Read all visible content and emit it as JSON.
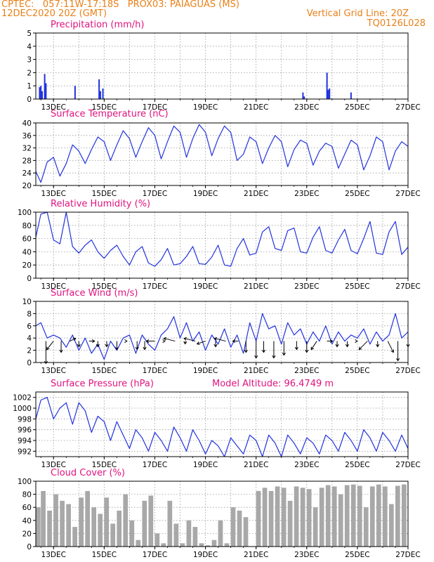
{
  "header": {
    "line1": "CPTEC:   057:11W-17:18S   PROX03: PAIAGUAS (MS)",
    "line2": "12DEC2020 20Z (GMT)",
    "grid_note": "Vertical Grid Line: 20Z",
    "code": "TQ0126L028",
    "model_altitude": "Model Altitude: 96.4749 m"
  },
  "colors": {
    "header": "#e8801a",
    "title": "#e0137f",
    "line": "#2233dd",
    "cloud": "#a8a8a8",
    "arrow": "#000000"
  },
  "x_axis": {
    "labels": [
      "13DEC",
      "15DEC",
      "17DEC",
      "19DEC",
      "21DEC",
      "23DEC",
      "25DEC",
      "27DEC"
    ],
    "label_days": [
      13,
      15,
      17,
      19,
      21,
      23,
      25,
      27
    ],
    "range": [
      12.3,
      27.0
    ],
    "vertical_grid_note": "daily at 20Z"
  },
  "chart_data": [
    {
      "type": "bar",
      "id": "precip",
      "title": "Precipitation (mm/h)",
      "ylim": [
        0,
        5
      ],
      "yticks": [
        "0",
        "1",
        "2",
        "3",
        "4",
        "5"
      ],
      "x": [
        12.45,
        12.5,
        12.55,
        12.65,
        12.7,
        13.85,
        14.8,
        14.85,
        14.95,
        22.85,
        22.9,
        23.8,
        23.85,
        23.9,
        24.75
      ],
      "values": [
        0.9,
        1.0,
        0.6,
        1.9,
        1.2,
        1.0,
        1.5,
        0.6,
        0.8,
        0.5,
        0.2,
        2.0,
        0.7,
        0.8,
        0.5
      ]
    },
    {
      "type": "line",
      "id": "temp",
      "title": "Surface Temperature (nC)",
      "ylim": [
        20,
        40
      ],
      "yticks": [
        "20",
        "24",
        "28",
        "32",
        "36",
        "40"
      ],
      "x": [
        12.3,
        12.5,
        12.75,
        13.0,
        13.25,
        13.5,
        13.75,
        14.0,
        14.25,
        14.5,
        14.75,
        15.0,
        15.25,
        15.5,
        15.75,
        16.0,
        16.25,
        16.5,
        16.75,
        17.0,
        17.25,
        17.5,
        17.75,
        18.0,
        18.25,
        18.5,
        18.75,
        19.0,
        19.25,
        19.5,
        19.75,
        20.0,
        20.25,
        20.5,
        20.75,
        21.0,
        21.25,
        21.5,
        21.75,
        22.0,
        22.25,
        22.5,
        22.75,
        23.0,
        23.25,
        23.5,
        23.75,
        24.0,
        24.25,
        24.5,
        24.75,
        25.0,
        25.25,
        25.5,
        25.75,
        26.0,
        26.25,
        26.5,
        26.75,
        27.0
      ],
      "values": [
        24.5,
        21.0,
        27.5,
        29.0,
        23.0,
        27.0,
        33.0,
        31.0,
        27.0,
        31.5,
        35.5,
        34.0,
        28.0,
        33.0,
        37.5,
        35.0,
        29.0,
        34.0,
        38.5,
        36.0,
        28.5,
        34.0,
        39.0,
        37.0,
        29.0,
        35.0,
        39.5,
        37.0,
        29.5,
        35.0,
        39.0,
        37.0,
        28.0,
        30.0,
        35.5,
        34.0,
        27.0,
        32.0,
        36.0,
        34.0,
        26.0,
        31.5,
        34.5,
        33.5,
        26.5,
        31.0,
        33.5,
        32.5,
        25.5,
        30.0,
        34.5,
        33.0,
        25.0,
        29.5,
        35.5,
        34.0,
        25.0,
        31.0,
        34.0,
        32.5
      ]
    },
    {
      "type": "line",
      "id": "rh",
      "title": "Relative Humidity (%)",
      "ylim": [
        0,
        100
      ],
      "yticks": [
        "0",
        "20",
        "40",
        "60",
        "80",
        "100"
      ],
      "x": [
        12.3,
        12.5,
        12.75,
        13.0,
        13.25,
        13.5,
        13.75,
        14.0,
        14.25,
        14.5,
        14.75,
        15.0,
        15.25,
        15.5,
        15.75,
        16.0,
        16.25,
        16.5,
        16.75,
        17.0,
        17.25,
        17.5,
        17.75,
        18.0,
        18.25,
        18.5,
        18.75,
        19.0,
        19.25,
        19.5,
        19.75,
        20.0,
        20.25,
        20.5,
        20.75,
        21.0,
        21.25,
        21.5,
        21.75,
        22.0,
        22.25,
        22.5,
        22.75,
        23.0,
        23.25,
        23.5,
        23.75,
        24.0,
        24.25,
        24.5,
        24.75,
        25.0,
        25.25,
        25.5,
        25.75,
        26.0,
        26.25,
        26.5,
        26.75,
        27.0
      ],
      "values": [
        62,
        97,
        100,
        58,
        52,
        100,
        48,
        38,
        50,
        58,
        40,
        30,
        42,
        50,
        33,
        20,
        40,
        48,
        23,
        18,
        28,
        45,
        20,
        22,
        33,
        48,
        22,
        21,
        32,
        50,
        20,
        18,
        45,
        60,
        35,
        38,
        70,
        78,
        45,
        42,
        72,
        76,
        40,
        38,
        62,
        78,
        42,
        38,
        58,
        74,
        42,
        37,
        60,
        86,
        38,
        36,
        70,
        86,
        36,
        47
      ]
    },
    {
      "type": "line",
      "id": "wind",
      "title": "Surface Wind (m/s)",
      "ylim": [
        0,
        10
      ],
      "yticks": [
        "0",
        "2",
        "4",
        "6",
        "8",
        "10"
      ],
      "x": [
        12.3,
        12.5,
        12.75,
        13.0,
        13.25,
        13.5,
        13.75,
        14.0,
        14.25,
        14.5,
        14.75,
        15.0,
        15.25,
        15.5,
        15.75,
        16.0,
        16.25,
        16.5,
        16.75,
        17.0,
        17.25,
        17.5,
        17.75,
        18.0,
        18.25,
        18.5,
        18.75,
        19.0,
        19.25,
        19.5,
        19.75,
        20.0,
        20.25,
        20.5,
        20.75,
        21.0,
        21.25,
        21.5,
        21.75,
        22.0,
        22.25,
        22.5,
        22.75,
        23.0,
        23.25,
        23.5,
        23.75,
        24.0,
        24.25,
        24.5,
        24.75,
        25.0,
        25.25,
        25.5,
        25.75,
        26.0,
        26.25,
        26.5,
        26.75,
        27.0
      ],
      "values": [
        6.0,
        6.5,
        4.0,
        4.5,
        4.0,
        2.5,
        4.5,
        2.0,
        4.0,
        1.5,
        3.0,
        0.5,
        3.5,
        2.0,
        4.0,
        4.5,
        1.5,
        4.5,
        3.0,
        2.0,
        4.5,
        5.5,
        7.5,
        4.0,
        6.5,
        3.5,
        5.0,
        2.0,
        4.5,
        3.0,
        5.5,
        2.5,
        4.5,
        1.5,
        6.5,
        3.5,
        8.0,
        5.5,
        6.0,
        3.0,
        6.5,
        4.5,
        5.5,
        3.0,
        5.0,
        3.5,
        6.0,
        3.0,
        5.0,
        3.5,
        4.5,
        4.0,
        5.5,
        3.0,
        5.0,
        3.5,
        4.5,
        8.0,
        4.0,
        5.0
      ],
      "vectors_x": [
        12.7,
        13.0,
        13.3,
        13.65,
        14.0,
        14.4,
        14.75,
        15.1,
        15.5,
        15.9,
        16.3,
        16.6,
        17.0,
        17.4,
        17.8,
        18.2,
        18.6,
        19.0,
        19.4,
        19.8,
        20.3,
        20.6,
        21.0,
        21.3,
        21.7,
        22.1,
        22.6,
        23.0,
        23.4,
        23.8,
        24.2,
        24.6,
        25.0,
        25.4,
        25.8,
        26.2,
        26.6,
        27.0
      ],
      "vectors_u": [
        0,
        -1.2,
        0,
        1.0,
        0,
        1.0,
        0,
        0,
        0,
        0,
        0,
        0,
        -1.5,
        0,
        -2.0,
        0,
        -2.0,
        -1.5,
        0,
        -2.0,
        -1.0,
        0,
        0,
        0,
        0,
        0,
        0,
        0,
        -1.0,
        1.0,
        0,
        0,
        0,
        -1.5,
        0,
        1.0,
        0,
        0
      ],
      "vectors_v": [
        -4.0,
        -1.5,
        -2.0,
        0.5,
        -1.0,
        0,
        -1.0,
        -1.0,
        -1.5,
        0,
        -1.5,
        -1.5,
        0,
        0,
        0.5,
        -0.5,
        0.5,
        -0.5,
        -1.0,
        0.5,
        0,
        -2.0,
        -3.0,
        -2.0,
        -3.0,
        -2.5,
        -1.5,
        -2.0,
        -1.5,
        0,
        -1.0,
        -1.0,
        0,
        -1.5,
        -1.0,
        -2.0,
        -3.5,
        -1.0
      ]
    },
    {
      "type": "line",
      "id": "pres",
      "title": "Surface Pressure (hPa)",
      "ylim": [
        991,
        1003
      ],
      "yticks": [
        "992",
        "994",
        "996",
        "998",
        "1000",
        "1002"
      ],
      "x": [
        12.3,
        12.5,
        12.75,
        13.0,
        13.25,
        13.5,
        13.75,
        14.0,
        14.25,
        14.5,
        14.75,
        15.0,
        15.25,
        15.5,
        15.75,
        16.0,
        16.25,
        16.5,
        16.75,
        17.0,
        17.25,
        17.5,
        17.75,
        18.0,
        18.25,
        18.5,
        18.75,
        19.0,
        19.25,
        19.5,
        19.75,
        20.0,
        20.25,
        20.5,
        20.75,
        21.0,
        21.25,
        21.5,
        21.75,
        22.0,
        22.25,
        22.5,
        22.75,
        23.0,
        23.25,
        23.5,
        23.75,
        24.0,
        24.25,
        24.5,
        24.75,
        25.0,
        25.25,
        25.5,
        25.75,
        26.0,
        26.25,
        26.5,
        26.75,
        27.0
      ],
      "values": [
        998.0,
        1001.5,
        1002.0,
        998.0,
        1000.0,
        1001.0,
        997.0,
        1001.0,
        999.5,
        995.5,
        998.5,
        997.5,
        994.0,
        997.5,
        995.0,
        992.5,
        996.0,
        994.5,
        992.0,
        995.5,
        994.0,
        992.0,
        996.5,
        994.5,
        992.0,
        996.0,
        994.0,
        991.5,
        994.0,
        993.0,
        991.0,
        994.5,
        993.0,
        991.5,
        995.0,
        994.0,
        991.0,
        995.0,
        993.5,
        991.0,
        995.0,
        993.5,
        991.5,
        994.5,
        993.5,
        991.5,
        995.0,
        994.0,
        992.0,
        995.5,
        994.0,
        992.0,
        996.0,
        994.5,
        992.0,
        995.5,
        994.0,
        992.0,
        995.0,
        992.5
      ]
    },
    {
      "type": "bar",
      "id": "cloud",
      "title": "Cloud Cover (%)",
      "ylim": [
        0,
        100
      ],
      "yticks": [
        "0",
        "20",
        "40",
        "60",
        "80",
        "100"
      ],
      "x": [
        12.3,
        12.5,
        12.75,
        13.0,
        13.25,
        13.5,
        13.75,
        14.0,
        14.25,
        14.5,
        14.75,
        15.0,
        15.25,
        15.5,
        15.75,
        16.0,
        16.25,
        16.5,
        16.75,
        17.0,
        17.25,
        17.5,
        17.75,
        18.0,
        18.25,
        18.5,
        18.75,
        19.0,
        19.25,
        19.5,
        19.75,
        20.0,
        20.25,
        20.5,
        20.75,
        21.0,
        21.25,
        21.5,
        21.75,
        22.0,
        22.25,
        22.5,
        22.75,
        23.0,
        23.25,
        23.5,
        23.75,
        24.0,
        24.25,
        24.5,
        24.75,
        25.0,
        25.25,
        25.5,
        25.75,
        26.0,
        26.25,
        26.5,
        26.75,
        27.0
      ],
      "values": [
        60,
        85,
        55,
        80,
        70,
        65,
        30,
        75,
        85,
        60,
        50,
        75,
        35,
        55,
        80,
        40,
        10,
        70,
        78,
        20,
        5,
        70,
        35,
        5,
        40,
        30,
        5,
        2,
        10,
        40,
        5,
        60,
        55,
        45,
        0,
        85,
        90,
        85,
        92,
        90,
        70,
        92,
        90,
        88,
        60,
        90,
        94,
        92,
        80,
        94,
        95,
        93,
        60,
        92,
        95,
        92,
        65,
        93,
        95,
        92
      ]
    }
  ]
}
